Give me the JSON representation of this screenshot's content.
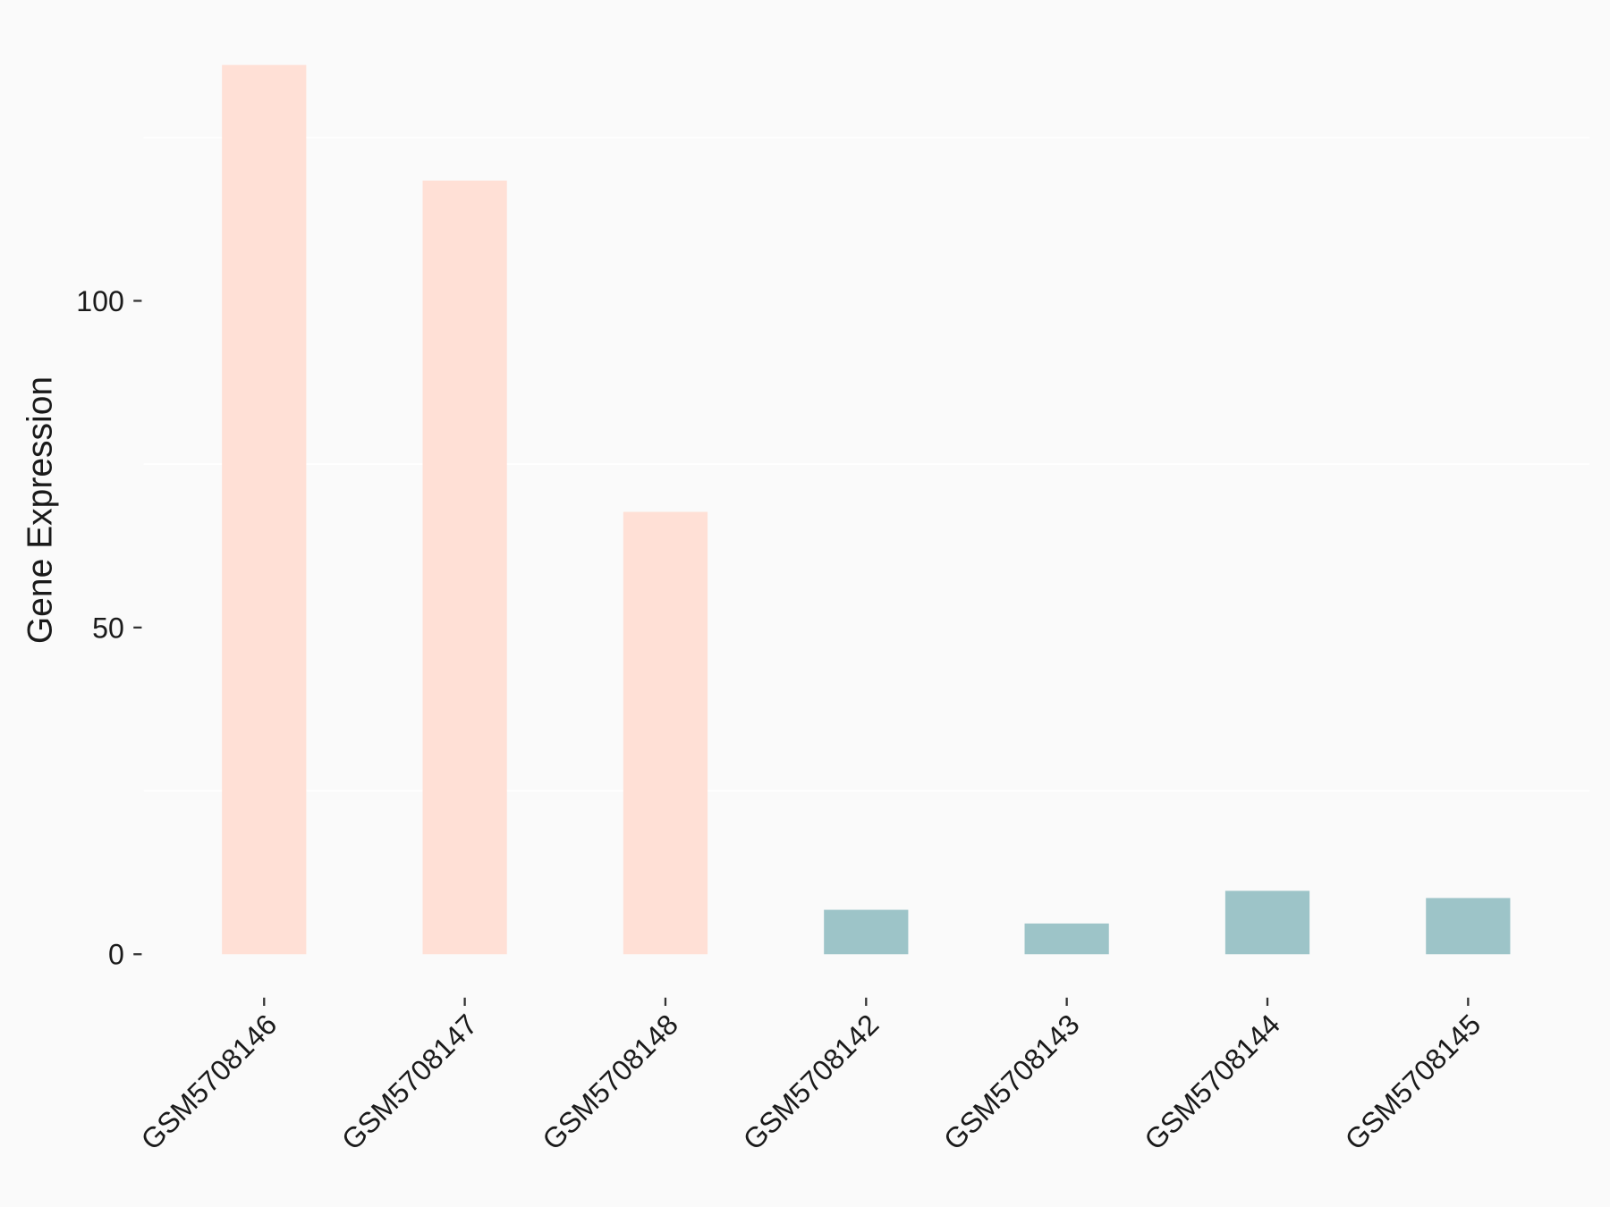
{
  "chart_data": {
    "type": "bar",
    "y_label": "Gene Expression",
    "categories": [
      "GSM5708146",
      "GSM5708147",
      "GSM5708148",
      "GSM5708142",
      "GSM5708143",
      "GSM5708144",
      "GSM5708145"
    ],
    "values": [
      136.1,
      118.4,
      67.7,
      6.8,
      4.7,
      9.7,
      8.6
    ],
    "colors": [
      "#ffe0d6",
      "#ffe0d6",
      "#ffe0d6",
      "#9dc4c8",
      "#9dc4c8",
      "#9dc4c8",
      "#9dc4c8"
    ],
    "ylim": [
      -6.8,
      142.9
    ],
    "yticks": [
      0,
      50,
      100
    ],
    "minor_grid": [
      25,
      75,
      125
    ],
    "grid": true
  }
}
